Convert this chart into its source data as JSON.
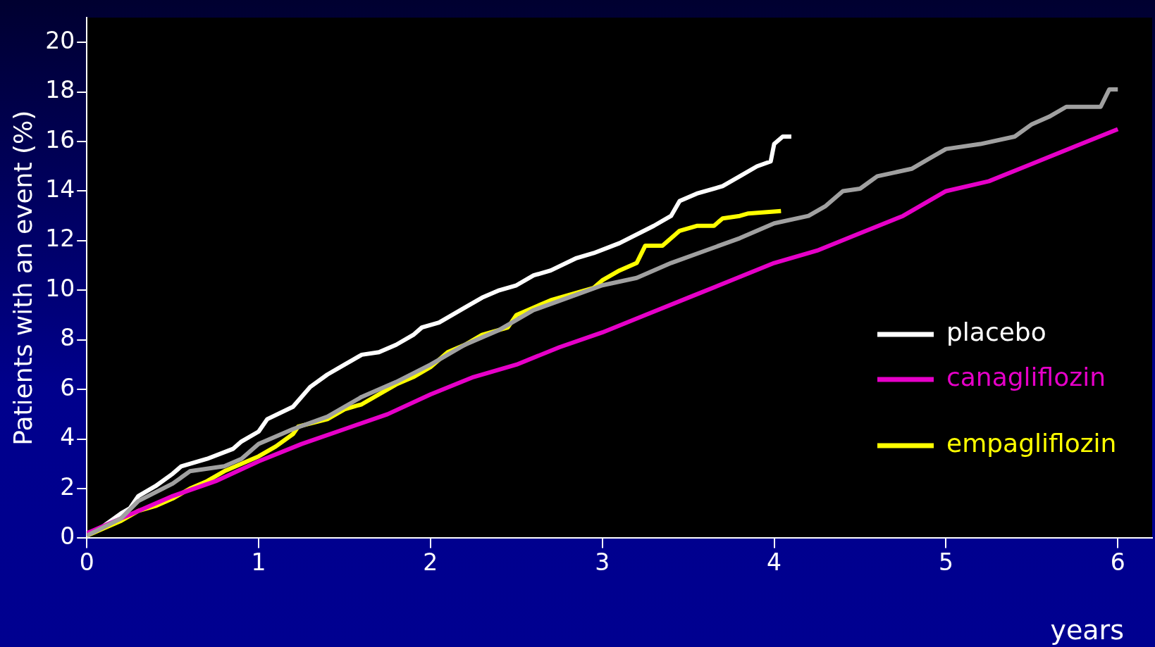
{
  "chart_data": {
    "type": "line",
    "xlabel": "years",
    "ylabel": "Patients with an event (%)",
    "xlim": [
      0,
      6.2
    ],
    "xticks": [
      0,
      1,
      2,
      3,
      4,
      5,
      6
    ],
    "ylim": [
      0,
      21
    ],
    "yticks": [
      0,
      2,
      4,
      6,
      8,
      10,
      12,
      14,
      16,
      18,
      20
    ],
    "grid": false,
    "legend": "right",
    "marker": "none",
    "line_style": "solid",
    "series": [
      {
        "color": "#a0a0a0",
        "x": [
          0,
          0.2,
          0.3,
          0.5,
          0.6,
          0.8,
          0.9,
          1,
          1.2,
          1.4,
          1.6,
          1.8,
          2,
          2.2,
          2.4,
          2.6,
          2.8,
          3,
          3.2,
          3.4,
          3.6,
          3.8,
          4,
          4.2,
          4.3,
          4.4,
          4.5,
          4.6,
          4.8,
          4.9,
          5,
          5.2,
          5.4,
          5.5,
          5.6,
          5.7,
          5.9,
          5.95,
          6
        ],
        "values": [
          0.1,
          0.8,
          1.5,
          2.2,
          2.7,
          2.9,
          3.2,
          3.8,
          4.4,
          4.9,
          5.7,
          6.3,
          7,
          7.8,
          8.4,
          9.2,
          9.7,
          10.2,
          10.5,
          11.1,
          11.6,
          12.1,
          12.7,
          13,
          13.4,
          14,
          14.1,
          14.6,
          14.9,
          15.3,
          15.7,
          15.9,
          16.2,
          16.7,
          17,
          17.4,
          17.4,
          18.1,
          18.1
        ]
      },
      {
        "name": "canagliflozin",
        "color": "#e600c8",
        "x": [
          0,
          0.3,
          0.5,
          0.75,
          1,
          1.25,
          1.5,
          1.75,
          2,
          2.25,
          2.5,
          2.75,
          3,
          3.25,
          3.5,
          3.75,
          4,
          4.25,
          4.5,
          4.75,
          5,
          5.25,
          5.5,
          5.75,
          6
        ],
        "values": [
          0.2,
          1.1,
          1.7,
          2.3,
          3.1,
          3.8,
          4.4,
          5,
          5.8,
          6.5,
          7,
          7.7,
          8.3,
          9,
          9.7,
          10.4,
          11.1,
          11.6,
          12.3,
          13,
          14,
          14.4,
          15.1,
          15.8,
          16.5
        ]
      },
      {
        "name": "empagliflozin",
        "color": "#ffff00",
        "x": [
          0,
          0.1,
          0.2,
          0.3,
          0.4,
          0.5,
          0.6,
          0.7,
          0.8,
          0.9,
          1,
          1.1,
          1.2,
          1.23,
          1.4,
          1.5,
          1.6,
          1.7,
          1.8,
          1.9,
          2,
          2.1,
          2.2,
          2.3,
          2.45,
          2.5,
          2.6,
          2.7,
          2.85,
          2.95,
          3,
          3.1,
          3.2,
          3.25,
          3.35,
          3.45,
          3.55,
          3.65,
          3.7,
          3.8,
          3.85,
          4.04
        ],
        "values": [
          0.1,
          0.4,
          0.7,
          1.1,
          1.3,
          1.6,
          2,
          2.3,
          2.7,
          3,
          3.3,
          3.7,
          4.2,
          4.5,
          4.8,
          5.2,
          5.4,
          5.8,
          6.2,
          6.5,
          6.9,
          7.5,
          7.8,
          8.2,
          8.5,
          9,
          9.3,
          9.6,
          9.9,
          10.1,
          10.4,
          10.8,
          11.1,
          11.8,
          11.8,
          12.4,
          12.6,
          12.6,
          12.9,
          13,
          13.1,
          13.2
        ]
      },
      {
        "name": "placebo",
        "color": "#ffffff",
        "x": [
          0,
          0.1,
          0.2,
          0.25,
          0.3,
          0.4,
          0.5,
          0.55,
          0.7,
          0.85,
          0.9,
          1,
          1.05,
          1.2,
          1.3,
          1.4,
          1.5,
          1.6,
          1.7,
          1.8,
          1.9,
          1.95,
          2.05,
          2.2,
          2.3,
          2.4,
          2.5,
          2.6,
          2.7,
          2.85,
          2.95,
          3.1,
          3.3,
          3.4,
          3.45,
          3.55,
          3.7,
          3.8,
          3.9,
          3.98,
          4,
          4.05,
          4.1
        ],
        "values": [
          0.1,
          0.5,
          1,
          1.2,
          1.7,
          2.1,
          2.6,
          2.9,
          3.2,
          3.6,
          3.9,
          4.3,
          4.8,
          5.3,
          6.1,
          6.6,
          7,
          7.4,
          7.5,
          7.8,
          8.2,
          8.5,
          8.7,
          9.3,
          9.7,
          10,
          10.2,
          10.6,
          10.8,
          11.3,
          11.5,
          11.9,
          12.6,
          13,
          13.6,
          13.9,
          14.2,
          14.6,
          15,
          15.2,
          15.9,
          16.2,
          16.2
        ]
      }
    ]
  }
}
